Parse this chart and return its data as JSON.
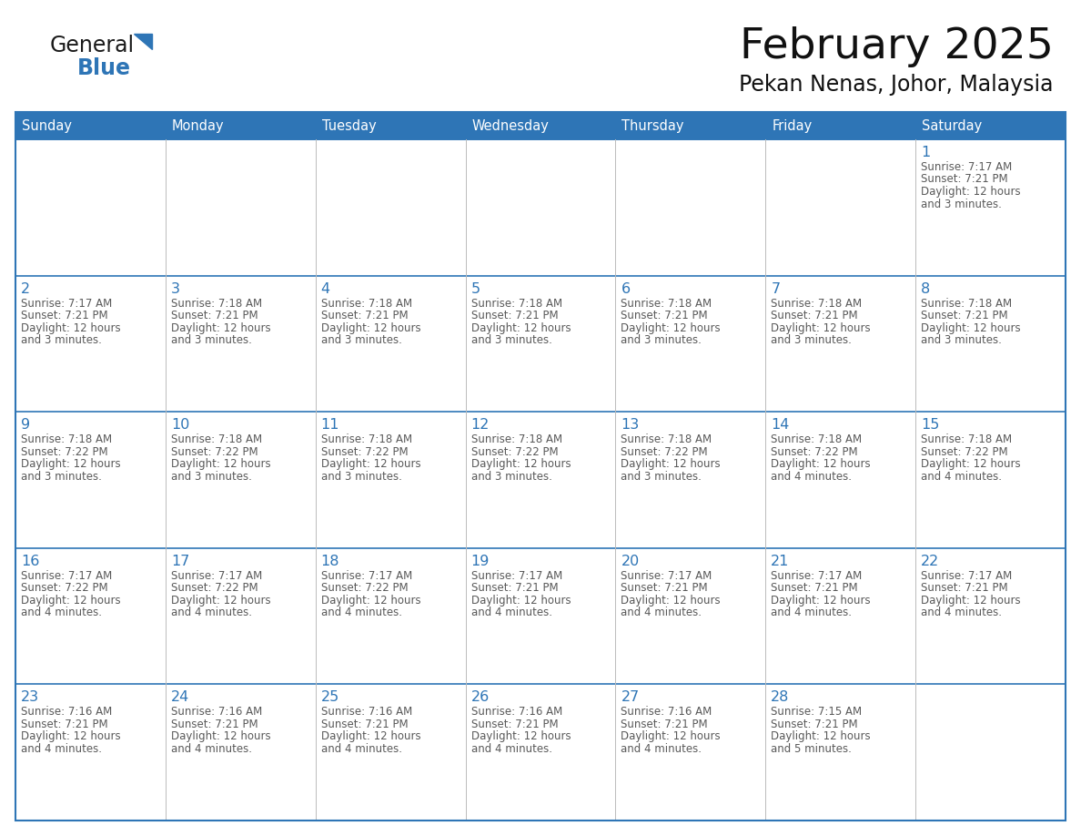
{
  "title": "February 2025",
  "subtitle": "Pekan Nenas, Johor, Malaysia",
  "header_bg_color": "#2E75B6",
  "header_text_color": "#FFFFFF",
  "cell_bg_color": "#FFFFFF",
  "border_color": "#2E75B6",
  "row_divider_color": "#2E75B6",
  "col_divider_color": "#BBBBBB",
  "day_number_color": "#2E75B6",
  "info_text_color": "#595959",
  "logo_general_color": "#1a1a1a",
  "logo_blue_color": "#2E75B6",
  "days_of_week": [
    "Sunday",
    "Monday",
    "Tuesday",
    "Wednesday",
    "Thursday",
    "Friday",
    "Saturday"
  ],
  "weeks": [
    [
      null,
      null,
      null,
      null,
      null,
      null,
      1
    ],
    [
      2,
      3,
      4,
      5,
      6,
      7,
      8
    ],
    [
      9,
      10,
      11,
      12,
      13,
      14,
      15
    ],
    [
      16,
      17,
      18,
      19,
      20,
      21,
      22
    ],
    [
      23,
      24,
      25,
      26,
      27,
      28,
      null
    ]
  ],
  "cell_data": {
    "1": {
      "sunrise": "7:17 AM",
      "sunset": "7:21 PM",
      "daylight": "12 hours",
      "daylight2": "and 3 minutes."
    },
    "2": {
      "sunrise": "7:17 AM",
      "sunset": "7:21 PM",
      "daylight": "12 hours",
      "daylight2": "and 3 minutes."
    },
    "3": {
      "sunrise": "7:18 AM",
      "sunset": "7:21 PM",
      "daylight": "12 hours",
      "daylight2": "and 3 minutes."
    },
    "4": {
      "sunrise": "7:18 AM",
      "sunset": "7:21 PM",
      "daylight": "12 hours",
      "daylight2": "and 3 minutes."
    },
    "5": {
      "sunrise": "7:18 AM",
      "sunset": "7:21 PM",
      "daylight": "12 hours",
      "daylight2": "and 3 minutes."
    },
    "6": {
      "sunrise": "7:18 AM",
      "sunset": "7:21 PM",
      "daylight": "12 hours",
      "daylight2": "and 3 minutes."
    },
    "7": {
      "sunrise": "7:18 AM",
      "sunset": "7:21 PM",
      "daylight": "12 hours",
      "daylight2": "and 3 minutes."
    },
    "8": {
      "sunrise": "7:18 AM",
      "sunset": "7:21 PM",
      "daylight": "12 hours",
      "daylight2": "and 3 minutes."
    },
    "9": {
      "sunrise": "7:18 AM",
      "sunset": "7:22 PM",
      "daylight": "12 hours",
      "daylight2": "and 3 minutes."
    },
    "10": {
      "sunrise": "7:18 AM",
      "sunset": "7:22 PM",
      "daylight": "12 hours",
      "daylight2": "and 3 minutes."
    },
    "11": {
      "sunrise": "7:18 AM",
      "sunset": "7:22 PM",
      "daylight": "12 hours",
      "daylight2": "and 3 minutes."
    },
    "12": {
      "sunrise": "7:18 AM",
      "sunset": "7:22 PM",
      "daylight": "12 hours",
      "daylight2": "and 3 minutes."
    },
    "13": {
      "sunrise": "7:18 AM",
      "sunset": "7:22 PM",
      "daylight": "12 hours",
      "daylight2": "and 3 minutes."
    },
    "14": {
      "sunrise": "7:18 AM",
      "sunset": "7:22 PM",
      "daylight": "12 hours",
      "daylight2": "and 4 minutes."
    },
    "15": {
      "sunrise": "7:18 AM",
      "sunset": "7:22 PM",
      "daylight": "12 hours",
      "daylight2": "and 4 minutes."
    },
    "16": {
      "sunrise": "7:17 AM",
      "sunset": "7:22 PM",
      "daylight": "12 hours",
      "daylight2": "and 4 minutes."
    },
    "17": {
      "sunrise": "7:17 AM",
      "sunset": "7:22 PM",
      "daylight": "12 hours",
      "daylight2": "and 4 minutes."
    },
    "18": {
      "sunrise": "7:17 AM",
      "sunset": "7:22 PM",
      "daylight": "12 hours",
      "daylight2": "and 4 minutes."
    },
    "19": {
      "sunrise": "7:17 AM",
      "sunset": "7:21 PM",
      "daylight": "12 hours",
      "daylight2": "and 4 minutes."
    },
    "20": {
      "sunrise": "7:17 AM",
      "sunset": "7:21 PM",
      "daylight": "12 hours",
      "daylight2": "and 4 minutes."
    },
    "21": {
      "sunrise": "7:17 AM",
      "sunset": "7:21 PM",
      "daylight": "12 hours",
      "daylight2": "and 4 minutes."
    },
    "22": {
      "sunrise": "7:17 AM",
      "sunset": "7:21 PM",
      "daylight": "12 hours",
      "daylight2": "and 4 minutes."
    },
    "23": {
      "sunrise": "7:16 AM",
      "sunset": "7:21 PM",
      "daylight": "12 hours",
      "daylight2": "and 4 minutes."
    },
    "24": {
      "sunrise": "7:16 AM",
      "sunset": "7:21 PM",
      "daylight": "12 hours",
      "daylight2": "and 4 minutes."
    },
    "25": {
      "sunrise": "7:16 AM",
      "sunset": "7:21 PM",
      "daylight": "12 hours",
      "daylight2": "and 4 minutes."
    },
    "26": {
      "sunrise": "7:16 AM",
      "sunset": "7:21 PM",
      "daylight": "12 hours",
      "daylight2": "and 4 minutes."
    },
    "27": {
      "sunrise": "7:16 AM",
      "sunset": "7:21 PM",
      "daylight": "12 hours",
      "daylight2": "and 4 minutes."
    },
    "28": {
      "sunrise": "7:15 AM",
      "sunset": "7:21 PM",
      "daylight": "12 hours",
      "daylight2": "and 5 minutes."
    }
  },
  "fig_width": 11.88,
  "fig_height": 9.18,
  "dpi": 100
}
